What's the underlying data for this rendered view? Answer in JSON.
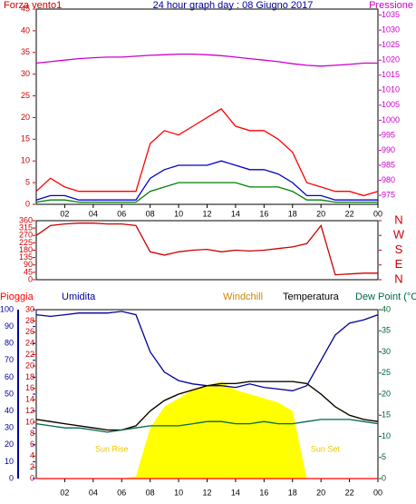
{
  "chart_data": [
    {
      "type": "line",
      "title": "24 hour graph day : 08 Giugno 2017",
      "ylabel": "Forza vento1",
      "y2label": "Pressione",
      "x": [
        0,
        1,
        2,
        3,
        4,
        5,
        6,
        7,
        8,
        9,
        10,
        11,
        12,
        13,
        14,
        15,
        16,
        17,
        18,
        19,
        20,
        21,
        22,
        23,
        24
      ],
      "xlim": [
        0,
        24
      ],
      "xticks": [
        {
          "value": 2,
          "label": "02"
        },
        {
          "value": 4,
          "label": "04"
        },
        {
          "value": 6,
          "label": "06"
        },
        {
          "value": 8,
          "label": "08"
        },
        10,
        12,
        14,
        16,
        18,
        20,
        22,
        {
          "value": 24,
          "label": "00"
        }
      ],
      "ylim": [
        0,
        45
      ],
      "yticks": [
        0,
        5,
        10,
        15,
        20,
        25,
        30,
        35,
        40,
        45
      ],
      "y2lim": [
        972,
        1037
      ],
      "y2ticks": [
        975,
        980,
        985,
        990,
        995,
        1000,
        1005,
        1010,
        1015,
        1020,
        1025,
        1030,
        1035
      ],
      "series": [
        {
          "color": "#ff0000",
          "values": [
            3,
            6,
            4,
            3,
            3,
            3,
            3,
            3,
            14,
            17,
            16,
            18,
            20,
            22,
            18,
            17,
            17,
            15,
            12,
            5,
            4,
            3,
            3,
            2,
            3
          ]
        },
        {
          "color": "#0000cc",
          "values": [
            1,
            2,
            2,
            1,
            1,
            1,
            1,
            1,
            6,
            8,
            9,
            9,
            9,
            10,
            9,
            8,
            8,
            7,
            5,
            2,
            2,
            1,
            1,
            1,
            1
          ]
        },
        {
          "color": "#008000",
          "values": [
            0.5,
            1,
            1,
            0.5,
            0.5,
            0.5,
            0.5,
            0.5,
            3,
            4,
            5,
            5,
            5,
            5,
            5,
            4,
            4,
            4,
            3,
            1,
            1,
            0.5,
            0.5,
            0.5,
            0.5
          ]
        },
        {
          "color": "#cc00cc",
          "axis": "y2",
          "values": [
            1019,
            1019.5,
            1020,
            1020.5,
            1020.8,
            1021,
            1021,
            1021.3,
            1021.6,
            1021.8,
            1022,
            1022,
            1021.8,
            1021.5,
            1021,
            1020.5,
            1020,
            1019.5,
            1018.8,
            1018.3,
            1018,
            1018.3,
            1018.6,
            1019,
            1019
          ]
        }
      ]
    },
    {
      "type": "line",
      "x": [
        0,
        1,
        2,
        3,
        4,
        5,
        6,
        7,
        8,
        9,
        10,
        11,
        12,
        13,
        14,
        15,
        16,
        17,
        18,
        19,
        20,
        21,
        22,
        23,
        24
      ],
      "xlim": [
        0,
        24
      ],
      "ylim": [
        0,
        360
      ],
      "yticks": [
        0,
        45,
        90,
        135,
        180,
        225,
        270,
        315,
        360
      ],
      "y2lim": [
        0,
        360
      ],
      "y2ticks": [
        {
          "value": 0,
          "label": "N"
        },
        {
          "value": 90,
          "label": "E"
        },
        {
          "value": 180,
          "label": "S"
        },
        {
          "value": 270,
          "label": "W"
        },
        {
          "value": 360,
          "label": "N"
        }
      ],
      "series": [
        {
          "color": "#cc0000",
          "values": [
            270,
            330,
            340,
            345,
            345,
            340,
            340,
            330,
            170,
            150,
            170,
            180,
            185,
            170,
            180,
            175,
            180,
            190,
            200,
            220,
            330,
            30,
            35,
            40,
            40
          ]
        }
      ]
    },
    {
      "type": "line",
      "x": [
        0,
        1,
        2,
        3,
        4,
        5,
        6,
        7,
        8,
        9,
        10,
        11,
        12,
        13,
        14,
        15,
        16,
        17,
        18,
        19,
        20,
        21,
        22,
        23,
        24
      ],
      "xlim": [
        0,
        24
      ],
      "xticks": [
        {
          "value": 2,
          "label": "02"
        },
        {
          "value": 4,
          "label": "04"
        },
        {
          "value": 6,
          "label": "06"
        },
        {
          "value": 8,
          "label": "08"
        },
        10,
        12,
        14,
        16,
        18,
        20,
        22,
        {
          "value": 24,
          "label": "00"
        }
      ],
      "ylim": [
        0,
        30
      ],
      "yticks": [
        0,
        2,
        4,
        6,
        8,
        10,
        12,
        14,
        16,
        18,
        20,
        22,
        24,
        26,
        28,
        30
      ],
      "y3lim": [
        0,
        100
      ],
      "y3ticks": [
        0,
        10,
        20,
        30,
        40,
        50,
        60,
        70,
        80,
        90,
        100
      ],
      "y2lim": [
        0,
        40
      ],
      "y2ticks": [
        0,
        5,
        10,
        15,
        20,
        25,
        30,
        35,
        40
      ],
      "annotations": [
        {
          "text": "Sun Rise",
          "x": 5.3
        },
        {
          "text": "Sun Set",
          "x": 20.3
        }
      ],
      "series": [
        {
          "color": "#ffff00",
          "axis": "y2",
          "fill": true,
          "values": [
            0,
            0,
            0,
            0,
            0,
            0,
            0,
            0.5,
            12,
            17,
            19,
            21,
            22,
            23,
            21,
            20,
            19,
            18,
            16,
            0,
            0,
            0,
            0,
            0,
            0
          ]
        },
        {
          "name": "Pioggia",
          "color": "#ff0000",
          "values": [
            0,
            0,
            0,
            0,
            0,
            0,
            0,
            0,
            0,
            0,
            0,
            0,
            0,
            0,
            0,
            0,
            0,
            0,
            0,
            0,
            0,
            0,
            0,
            0,
            0
          ]
        },
        {
          "name": "Umidita",
          "color": "#000099",
          "axis": "y3",
          "values": [
            97,
            96,
            97,
            98,
            98,
            98,
            99,
            97,
            75,
            63,
            58,
            56,
            55,
            55,
            54,
            56,
            54,
            53,
            52,
            55,
            70,
            85,
            92,
            94,
            97
          ]
        },
        {
          "name": "Windchill",
          "color": "#cc8800",
          "axis": "y2",
          "values": [
            14,
            13.5,
            13,
            12.5,
            12,
            11.5,
            11.5,
            12.5,
            16,
            18.5,
            20,
            21,
            22,
            22.5,
            22.5,
            23,
            23,
            23,
            23,
            22.5,
            20,
            17,
            15,
            14,
            13.5
          ]
        },
        {
          "name": "Temperatura",
          "color": "#000000",
          "axis": "y2",
          "values": [
            14,
            13.5,
            13,
            12.5,
            12,
            11.5,
            11.5,
            12.5,
            16,
            18.5,
            20,
            21,
            22,
            22.5,
            22.5,
            23,
            23,
            23,
            23,
            22.5,
            20,
            17,
            15,
            14,
            13.5
          ]
        },
        {
          "name": "Dew Point (°C",
          "color": "#00664d",
          "axis": "y2",
          "values": [
            13,
            12.5,
            12,
            12,
            11.5,
            11,
            11.5,
            12,
            12.5,
            12.5,
            12.5,
            13,
            13.5,
            13.5,
            13,
            13,
            13.5,
            13,
            13,
            13.5,
            14,
            14,
            14,
            13.5,
            13
          ]
        }
      ]
    }
  ]
}
